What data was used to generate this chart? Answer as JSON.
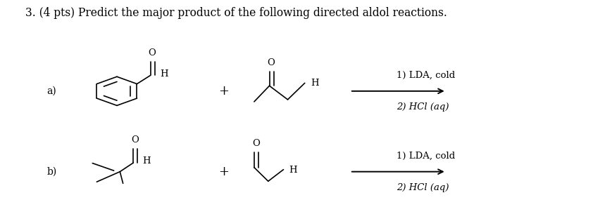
{
  "title": "3. (4 pts) Predict the major product of the following directed aldol reactions.",
  "bg_color": "#ffffff",
  "text_color": "#000000",
  "conditions_line1": "1) LDA, cold",
  "conditions_line2": "2) HCl (aq)"
}
